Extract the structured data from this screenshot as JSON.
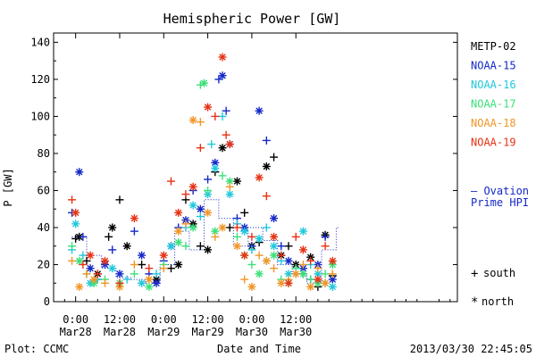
{
  "chart_data": {
    "type": "scatter",
    "title": "Hemispheric Power [GW]",
    "ylabel": "P [GW]",
    "xlabel": "Date and Time",
    "ylim": [
      0,
      145
    ],
    "xlim_hours": [
      -6,
      104
    ],
    "y_ticks": [
      0,
      20,
      40,
      60,
      80,
      100,
      120,
      140
    ],
    "x_ticks": [
      {
        "hour": 0,
        "line1": "0:00",
        "line2": "Mar28"
      },
      {
        "hour": 12,
        "line1": "12:00",
        "line2": "Mar28"
      },
      {
        "hour": 24,
        "line1": "0:00",
        "line2": "Mar29"
      },
      {
        "hour": 36,
        "line1": "12:00",
        "line2": "Mar29"
      },
      {
        "hour": 48,
        "line1": "0:00",
        "line2": "Mar30"
      },
      {
        "hour": 60,
        "line1": "12:00",
        "line2": "Mar30"
      }
    ],
    "grid": false,
    "legend_position": "right",
    "series": [
      {
        "name": "METP-02",
        "color": "#000000",
        "points": [
          [
            0,
            34
          ],
          [
            1,
            35
          ],
          [
            3,
            22
          ],
          [
            6,
            15
          ],
          [
            9,
            35
          ],
          [
            10,
            40
          ],
          [
            12,
            55
          ],
          [
            14,
            30
          ],
          [
            18,
            20
          ],
          [
            22,
            12
          ],
          [
            26,
            18
          ],
          [
            28,
            20
          ],
          [
            30,
            55
          ],
          [
            32,
            42
          ],
          [
            34,
            30
          ],
          [
            36,
            28
          ],
          [
            38,
            70
          ],
          [
            40,
            83
          ],
          [
            42,
            40
          ],
          [
            44,
            65
          ],
          [
            46,
            48
          ],
          [
            48,
            30
          ],
          [
            50,
            32
          ],
          [
            52,
            73
          ],
          [
            54,
            78
          ],
          [
            56,
            25
          ],
          [
            58,
            30
          ],
          [
            60,
            20
          ],
          [
            62,
            15
          ],
          [
            64,
            24
          ],
          [
            66,
            8
          ],
          [
            68,
            36
          ],
          [
            70,
            14
          ]
        ]
      },
      {
        "name": "NOAA-15",
        "color": "#1428c8",
        "points": [
          [
            -1,
            48
          ],
          [
            1,
            70
          ],
          [
            2,
            35
          ],
          [
            4,
            18
          ],
          [
            6,
            12
          ],
          [
            8,
            20
          ],
          [
            10,
            28
          ],
          [
            12,
            15
          ],
          [
            16,
            38
          ],
          [
            18,
            25
          ],
          [
            20,
            15
          ],
          [
            22,
            10
          ],
          [
            24,
            22
          ],
          [
            26,
            30
          ],
          [
            28,
            40
          ],
          [
            30,
            44
          ],
          [
            32,
            60
          ],
          [
            34,
            50
          ],
          [
            36,
            66
          ],
          [
            38,
            75
          ],
          [
            39,
            120
          ],
          [
            40,
            122
          ],
          [
            41,
            103
          ],
          [
            42,
            85
          ],
          [
            44,
            45
          ],
          [
            46,
            40
          ],
          [
            48,
            30
          ],
          [
            50,
            103
          ],
          [
            52,
            87
          ],
          [
            54,
            45
          ],
          [
            56,
            30
          ],
          [
            58,
            22
          ],
          [
            60,
            15
          ],
          [
            62,
            18
          ],
          [
            64,
            12
          ],
          [
            66,
            20
          ],
          [
            68,
            35
          ],
          [
            70,
            12
          ]
        ]
      },
      {
        "name": "NOAA-16",
        "color": "#20c8dc",
        "points": [
          [
            -1,
            28
          ],
          [
            0,
            42
          ],
          [
            2,
            25
          ],
          [
            4,
            10
          ],
          [
            6,
            12
          ],
          [
            10,
            18
          ],
          [
            14,
            12
          ],
          [
            18,
            10
          ],
          [
            22,
            15
          ],
          [
            26,
            30
          ],
          [
            30,
            40
          ],
          [
            32,
            52
          ],
          [
            34,
            46
          ],
          [
            36,
            58
          ],
          [
            37,
            85
          ],
          [
            38,
            72
          ],
          [
            40,
            100
          ],
          [
            42,
            58
          ],
          [
            44,
            42
          ],
          [
            46,
            38
          ],
          [
            48,
            28
          ],
          [
            50,
            34
          ],
          [
            52,
            40
          ],
          [
            54,
            30
          ],
          [
            56,
            22
          ],
          [
            58,
            15
          ],
          [
            60,
            18
          ],
          [
            62,
            38
          ],
          [
            64,
            20
          ],
          [
            66,
            15
          ],
          [
            68,
            10
          ],
          [
            70,
            8
          ]
        ]
      },
      {
        "name": "NOAA-17",
        "color": "#3ce07a",
        "points": [
          [
            -1,
            30
          ],
          [
            1,
            22
          ],
          [
            3,
            15
          ],
          [
            5,
            10
          ],
          [
            8,
            12
          ],
          [
            12,
            10
          ],
          [
            16,
            15
          ],
          [
            20,
            8
          ],
          [
            24,
            20
          ],
          [
            28,
            32
          ],
          [
            30,
            30
          ],
          [
            32,
            40
          ],
          [
            34,
            117
          ],
          [
            35,
            118
          ],
          [
            36,
            60
          ],
          [
            38,
            38
          ],
          [
            40,
            68
          ],
          [
            42,
            65
          ],
          [
            44,
            35
          ],
          [
            46,
            25
          ],
          [
            48,
            20
          ],
          [
            50,
            15
          ],
          [
            52,
            22
          ],
          [
            54,
            25
          ],
          [
            56,
            12
          ],
          [
            58,
            10
          ],
          [
            60,
            18
          ],
          [
            62,
            15
          ],
          [
            64,
            12
          ],
          [
            66,
            10
          ],
          [
            68,
            15
          ],
          [
            70,
            20
          ]
        ]
      },
      {
        "name": "NOAA-18",
        "color": "#f09628",
        "points": [
          [
            -1,
            22
          ],
          [
            1,
            8
          ],
          [
            3,
            15
          ],
          [
            5,
            12
          ],
          [
            8,
            10
          ],
          [
            12,
            8
          ],
          [
            16,
            20
          ],
          [
            20,
            12
          ],
          [
            24,
            18
          ],
          [
            28,
            38
          ],
          [
            30,
            42
          ],
          [
            32,
            98
          ],
          [
            34,
            97
          ],
          [
            36,
            48
          ],
          [
            38,
            35
          ],
          [
            40,
            40
          ],
          [
            42,
            62
          ],
          [
            44,
            30
          ],
          [
            46,
            12
          ],
          [
            48,
            8
          ],
          [
            50,
            25
          ],
          [
            52,
            22
          ],
          [
            54,
            18
          ],
          [
            56,
            10
          ],
          [
            58,
            12
          ],
          [
            60,
            15
          ],
          [
            62,
            20
          ],
          [
            64,
            8
          ],
          [
            66,
            18
          ],
          [
            68,
            10
          ],
          [
            70,
            15
          ]
        ]
      },
      {
        "name": "NOAA-19",
        "color": "#e63214",
        "points": [
          [
            -1,
            55
          ],
          [
            0,
            48
          ],
          [
            2,
            20
          ],
          [
            4,
            25
          ],
          [
            6,
            15
          ],
          [
            8,
            22
          ],
          [
            12,
            10
          ],
          [
            16,
            45
          ],
          [
            20,
            18
          ],
          [
            24,
            25
          ],
          [
            26,
            65
          ],
          [
            28,
            48
          ],
          [
            30,
            58
          ],
          [
            32,
            62
          ],
          [
            34,
            83
          ],
          [
            36,
            105
          ],
          [
            38,
            100
          ],
          [
            40,
            132
          ],
          [
            41,
            90
          ],
          [
            42,
            85
          ],
          [
            44,
            40
          ],
          [
            46,
            25
          ],
          [
            48,
            35
          ],
          [
            50,
            67
          ],
          [
            52,
            57
          ],
          [
            54,
            35
          ],
          [
            56,
            25
          ],
          [
            58,
            10
          ],
          [
            60,
            35
          ],
          [
            62,
            28
          ],
          [
            64,
            22
          ],
          [
            66,
            12
          ],
          [
            68,
            30
          ],
          [
            70,
            22
          ]
        ]
      }
    ],
    "ovation_hours": [
      -1,
      3,
      3,
      7,
      7,
      11,
      11,
      15,
      15,
      19,
      19,
      23,
      23,
      27,
      27,
      31,
      31,
      35,
      35,
      39,
      39,
      43,
      43,
      47,
      47,
      51,
      51,
      55,
      55,
      59,
      59,
      63,
      63,
      67,
      67,
      71,
      71,
      72
    ],
    "ovation_values": [
      35,
      35,
      25,
      25,
      18,
      18,
      13,
      13,
      12,
      12,
      10,
      10,
      20,
      20,
      38,
      38,
      28,
      28,
      55,
      55,
      45,
      45,
      30,
      30,
      40,
      40,
      33,
      33,
      20,
      20,
      15,
      15,
      10,
      10,
      28,
      28,
      40,
      40
    ],
    "ovation_label_line1": "— Ovation",
    "ovation_label_line2": "Prime HPI",
    "symbol_south_marker": "+",
    "symbol_south_label": "south",
    "symbol_north_marker": "*",
    "symbol_north_label": "north"
  },
  "footer": {
    "plot_credit": "Plot: CCMC",
    "timestamp": "2013/03/30 22:45:05"
  }
}
